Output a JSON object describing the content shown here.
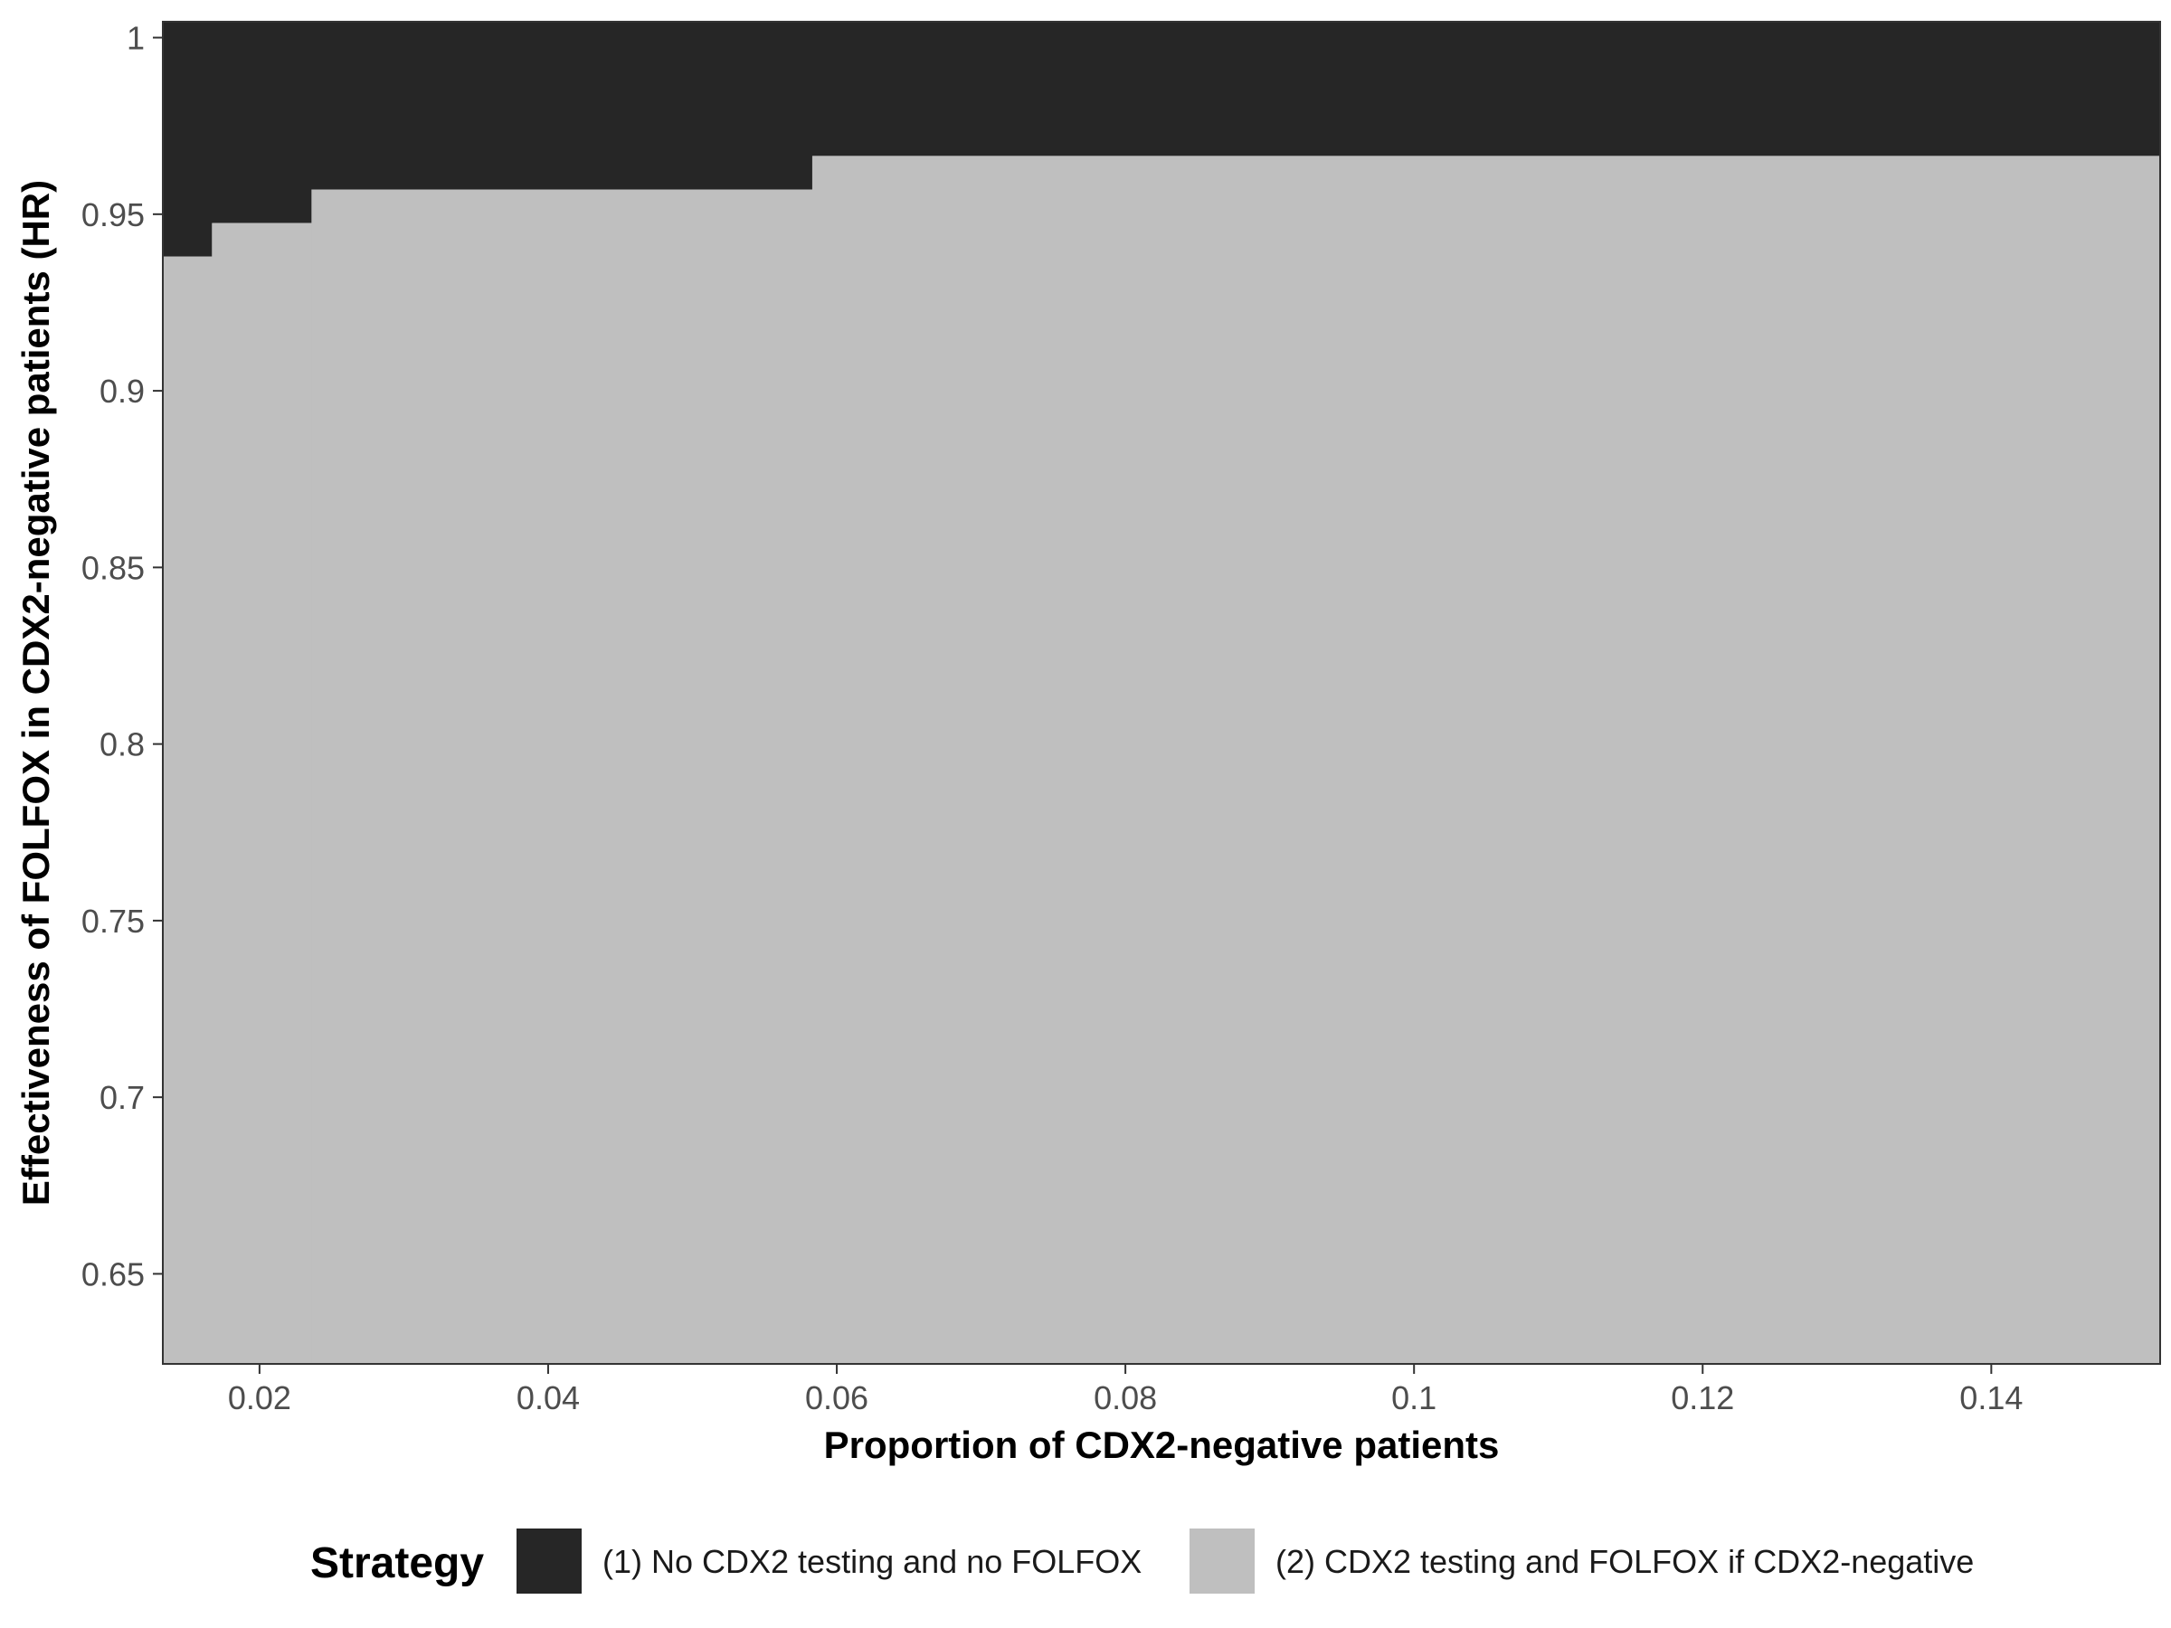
{
  "chart_data": {
    "type": "area",
    "title": "",
    "xlabel": "Proportion of CDX2-negative patients",
    "ylabel": "Effectiveness of FOLFOX in CDX2-negative patients (HR)",
    "xlim": [
      0.0133,
      0.1517
    ],
    "ylim": [
      0.6245,
      1.0045
    ],
    "x_ticks": [
      0.02,
      0.04,
      0.06,
      0.08,
      0.1,
      0.12,
      0.14
    ],
    "x_tick_labels": [
      "0.02",
      "0.04",
      "0.06",
      "0.08",
      "0.1",
      "0.12",
      "0.14"
    ],
    "y_ticks": [
      0.65,
      0.7,
      0.75,
      0.8,
      0.85,
      0.9,
      0.95,
      1.0
    ],
    "y_tick_labels": [
      "0.65",
      "0.7",
      "0.75",
      "0.8",
      "0.85",
      "0.9",
      "0.95",
      "1"
    ],
    "boundary_steps": [
      {
        "x_start": 0.0133,
        "x_end": 0.0167,
        "hr_threshold": 0.938
      },
      {
        "x_start": 0.0167,
        "x_end": 0.0236,
        "hr_threshold": 0.9475
      },
      {
        "x_start": 0.0236,
        "x_end": 0.0583,
        "hr_threshold": 0.957
      },
      {
        "x_start": 0.0583,
        "x_end": 0.1517,
        "hr_threshold": 0.9665
      }
    ],
    "legend": {
      "title": "Strategy",
      "position": "bottom",
      "entries": [
        {
          "label": "(1) No CDX2 testing and no FOLFOX",
          "color": "#262626"
        },
        {
          "label": "(2) CDX2 testing and FOLFOX if CDX2-negative",
          "color": "#bfbfbf"
        }
      ]
    },
    "grid": false
  }
}
